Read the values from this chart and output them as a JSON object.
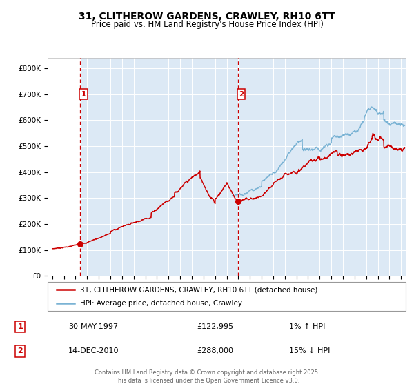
{
  "title": "31, CLITHEROW GARDENS, CRAWLEY, RH10 6TT",
  "subtitle": "Price paid vs. HM Land Registry's House Price Index (HPI)",
  "hpi_label": "HPI: Average price, detached house, Crawley",
  "property_label": "31, CLITHEROW GARDENS, CRAWLEY, RH10 6TT (detached house)",
  "hpi_color": "#7ab3d4",
  "property_color": "#cc0000",
  "vline_color": "#cc0000",
  "bg_color_main": "#dce9f5",
  "bg_color_left": "#ffffff",
  "sale1": {
    "date_num": 1997.41,
    "price": 122995,
    "label": "1",
    "date_str": "30-MAY-1997",
    "pct": "1%",
    "dir": "↑"
  },
  "sale2": {
    "date_num": 2010.95,
    "price": 288000,
    "label": "2",
    "date_str": "14-DEC-2010",
    "pct": "15%",
    "dir": "↓"
  },
  "ylim": [
    0,
    840000
  ],
  "xlim": [
    1994.6,
    2025.4
  ],
  "yticks": [
    0,
    100000,
    200000,
    300000,
    400000,
    500000,
    600000,
    700000,
    800000
  ],
  "ytick_labels": [
    "£0",
    "£100K",
    "£200K",
    "£300K",
    "£400K",
    "£500K",
    "£600K",
    "£700K",
    "£800K"
  ],
  "footer": "Contains HM Land Registry data © Crown copyright and database right 2025.\nThis data is licensed under the Open Government Licence v3.0.",
  "box_color": "#cc0000",
  "hpi_start_year": 2010.5
}
